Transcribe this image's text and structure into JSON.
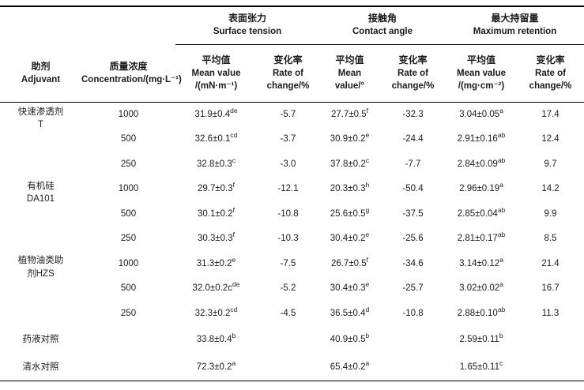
{
  "page": {
    "background_color": "#ffffff",
    "text_color": "#1b1b1b",
    "rule_color": "#000000"
  },
  "table": {
    "groups": [
      {
        "zh": "表面张力",
        "en": "Surface tension"
      },
      {
        "zh": "接触角",
        "en": "Contact angle"
      },
      {
        "zh": "最大持留量",
        "en": "Maximum retention"
      }
    ],
    "columns": {
      "adjuvant": {
        "zh": "助剂",
        "en": "Adjuvant"
      },
      "concentration": {
        "zh": "质量浓度",
        "en": "Concentration/(mg·L⁻¹)"
      },
      "st_mean": {
        "l1": "平均值",
        "l2": "Mean value",
        "l3": "/(mN·m⁻¹)"
      },
      "st_rate": {
        "l1": "变化率",
        "l2": "Rate of",
        "l3": "change/%"
      },
      "ca_mean": {
        "l1": "平均值",
        "l2": "Mean",
        "l3": "value/°"
      },
      "ca_rate": {
        "l1": "变化率",
        "l2": "Rate of",
        "l3": "change/%"
      },
      "mr_mean": {
        "l1": "平均值",
        "l2": "Mean value",
        "l3": "/(mg·cm⁻²)"
      },
      "mr_rate": {
        "l1": "变化率",
        "l2": "Rate of",
        "l3": "change/%"
      }
    },
    "rows": [
      {
        "adj1": "快速渗透剂",
        "adj2": "T",
        "conc": "1000",
        "st": "31.9±0.4",
        "st_sup": "de",
        "st_rate": "-5.7",
        "ca": "27.7±0.5",
        "ca_sup": "f",
        "ca_rate": "-32.3",
        "mr": "3.04±0.05",
        "mr_sup": "a",
        "mr_rate": "17.4"
      },
      {
        "conc": "500",
        "st": "32.6±0.1",
        "st_sup": "cd",
        "st_rate": "-3.7",
        "ca": "30.9±0.2",
        "ca_sup": "e",
        "ca_rate": "-24.4",
        "mr": "2.91±0.16",
        "mr_sup": "ab",
        "mr_rate": "12.4"
      },
      {
        "conc": "250",
        "st": "32.8±0.3",
        "st_sup": "c",
        "st_rate": "-3.0",
        "ca": "37.8±0.2",
        "ca_sup": "c",
        "ca_rate": "-7.7",
        "mr": "2.84±0.09",
        "mr_sup": "ab",
        "mr_rate": "9.7"
      },
      {
        "adj1": "有机硅",
        "adj2": "DA101",
        "conc": "1000",
        "st": "29.7±0.3",
        "st_sup": "f",
        "st_rate": "-12.1",
        "ca": "20.3±0.3",
        "ca_sup": "h",
        "ca_rate": "-50.4",
        "mr": "2.96±0.19",
        "mr_sup": "a",
        "mr_rate": "14.2"
      },
      {
        "conc": "500",
        "st": "30.1±0.2",
        "st_sup": "f",
        "st_rate": "-10.8",
        "ca": "25.6±0.5",
        "ca_sup": "g",
        "ca_rate": "-37.5",
        "mr": "2.85±0.04",
        "mr_sup": "ab",
        "mr_rate": "9.9"
      },
      {
        "conc": "250",
        "st": "30.3±0.3",
        "st_sup": "f",
        "st_rate": "-10.3",
        "ca": "30.4±0.2",
        "ca_sup": "e",
        "ca_rate": "-25.6",
        "mr": "2.81±0.17",
        "mr_sup": "ab",
        "mr_rate": "8.5"
      },
      {
        "adj1": "植物油类助",
        "adj2": "剂HZS",
        "conc": "1000",
        "st": "31.3±0.2",
        "st_sup": "e",
        "st_rate": "-7.5",
        "ca": "26.7±0.5",
        "ca_sup": "f",
        "ca_rate": "-34.6",
        "mr": "3.14±0.12",
        "mr_sup": "a",
        "mr_rate": "21.4"
      },
      {
        "conc": "500",
        "st": "32.0±0.2c",
        "st_sup": "de",
        "st_rate": "-5.2",
        "ca": "30.4±0.3",
        "ca_sup": "e",
        "ca_rate": "-25.7",
        "mr": "3.02±0.02",
        "mr_sup": "a",
        "mr_rate": "16.7"
      },
      {
        "conc": "250",
        "st": "32.3±0.2",
        "st_sup": "cd",
        "st_rate": "-4.5",
        "ca": "36.5±0.4",
        "ca_sup": "d",
        "ca_rate": "-10.8",
        "mr": "2.88±0.10",
        "mr_sup": "ab",
        "mr_rate": "11.3"
      },
      {
        "adj1": "药液对照",
        "st": "33.8±0.4",
        "st_sup": "b",
        "ca": "40.9±0.5",
        "ca_sup": "b",
        "mr": "2.59±0.11",
        "mr_sup": "b"
      },
      {
        "adj1": "清水对照",
        "st": "72.3±0.2",
        "st_sup": "a",
        "ca": "65.4±0.2",
        "ca_sup": "a",
        "mr": "1.65±0.11",
        "mr_sup": "c"
      }
    ]
  }
}
